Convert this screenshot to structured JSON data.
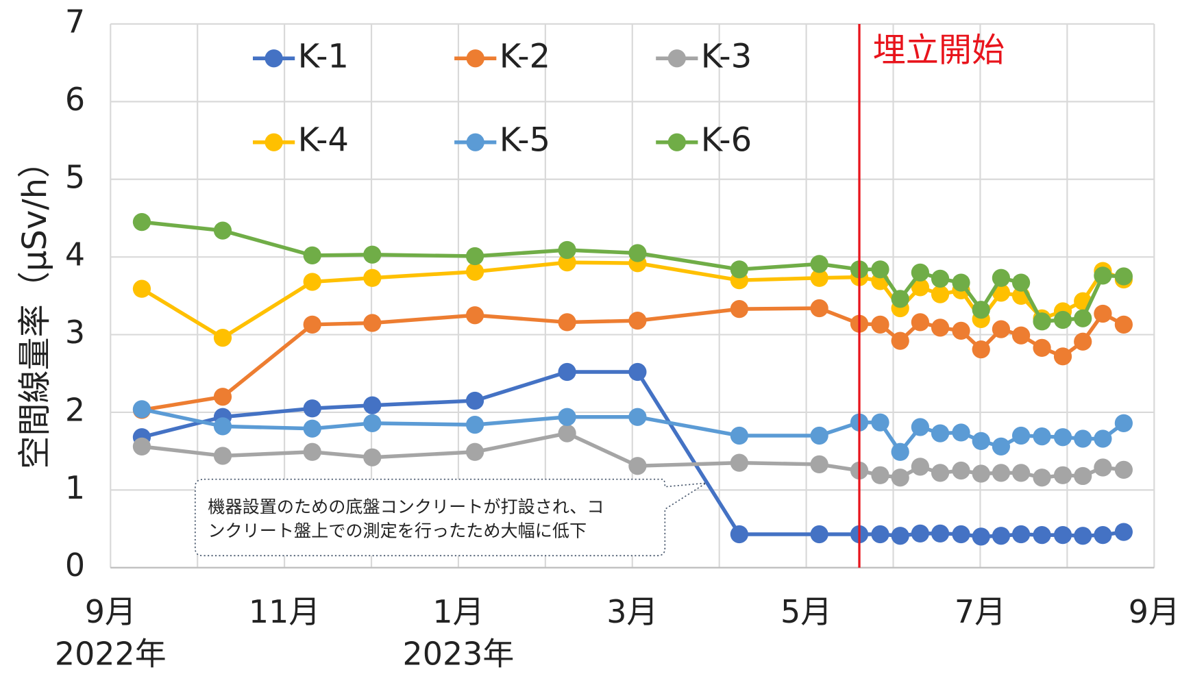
{
  "chart_data": {
    "type": "line",
    "y_label": "空間線量率（μSv/h）",
    "x": [
      0.36,
      1.29,
      2.32,
      3.01,
      4.19,
      5.25,
      6.06,
      7.23,
      8.15,
      8.61,
      8.85,
      9.08,
      9.31,
      9.54,
      9.78,
      10.01,
      10.24,
      10.47,
      10.71,
      10.95,
      11.18,
      11.41,
      11.65
    ],
    "series": [
      {
        "name": "K-1",
        "color": "#4472c4",
        "values": [
          1.68,
          1.94,
          2.05,
          2.09,
          2.15,
          2.52,
          2.52,
          0.43,
          0.43,
          0.43,
          0.43,
          0.41,
          0.44,
          0.44,
          0.43,
          0.4,
          0.41,
          0.43,
          0.42,
          0.42,
          0.41,
          0.42,
          0.46
        ]
      },
      {
        "name": "K-2",
        "color": "#ed7d31",
        "values": [
          2.03,
          2.2,
          3.13,
          3.15,
          3.25,
          3.16,
          3.18,
          3.33,
          3.34,
          3.14,
          3.13,
          2.92,
          3.16,
          3.09,
          3.05,
          2.81,
          3.07,
          2.99,
          2.83,
          2.72,
          2.91,
          3.27,
          3.13
        ]
      },
      {
        "name": "K-3",
        "color": "#a5a5a5",
        "values": [
          1.56,
          1.44,
          1.49,
          1.42,
          1.49,
          1.73,
          1.31,
          1.35,
          1.33,
          1.25,
          1.19,
          1.16,
          1.3,
          1.22,
          1.25,
          1.21,
          1.22,
          1.22,
          1.16,
          1.19,
          1.18,
          1.29,
          1.26
        ]
      },
      {
        "name": "K-4",
        "color": "#ffc000",
        "values": [
          3.59,
          2.96,
          3.68,
          3.73,
          3.81,
          3.93,
          3.92,
          3.7,
          3.73,
          3.74,
          3.69,
          3.34,
          3.61,
          3.52,
          3.57,
          3.2,
          3.54,
          3.5,
          3.21,
          3.3,
          3.43,
          3.82,
          3.71
        ]
      },
      {
        "name": "K-5",
        "color": "#5b9bd5",
        "values": [
          2.04,
          1.82,
          1.79,
          1.86,
          1.84,
          1.94,
          1.94,
          1.7,
          1.7,
          1.87,
          1.87,
          1.49,
          1.81,
          1.73,
          1.74,
          1.63,
          1.56,
          1.7,
          1.69,
          1.68,
          1.66,
          1.66,
          1.86
        ]
      },
      {
        "name": "K-6",
        "color": "#70ad47",
        "values": [
          4.45,
          4.34,
          4.02,
          4.03,
          4.01,
          4.09,
          4.05,
          3.84,
          3.91,
          3.84,
          3.84,
          3.46,
          3.8,
          3.72,
          3.67,
          3.32,
          3.73,
          3.67,
          3.17,
          3.19,
          3.21,
          3.76,
          3.75
        ]
      }
    ],
    "xlim": [
      0,
      12
    ],
    "xticks": [
      {
        "value": 0,
        "label": "9月"
      },
      {
        "value": 2,
        "label": "11月"
      },
      {
        "value": 4,
        "label": "1月"
      },
      {
        "value": 6,
        "label": "3月"
      },
      {
        "value": 8,
        "label": "5月"
      },
      {
        "value": 10,
        "label": "7月"
      },
      {
        "value": 12,
        "label": "9月"
      }
    ],
    "xminor": [
      1,
      3,
      5,
      7,
      9,
      11
    ],
    "x_year_labels": [
      {
        "value": 0,
        "label": "2022年"
      },
      {
        "value": 4,
        "label": "2023年"
      }
    ],
    "ylim": [
      0,
      7
    ],
    "yticks": [
      0,
      1,
      2,
      3,
      4,
      5,
      6,
      7
    ],
    "grid": true,
    "vline": {
      "x": 8.61,
      "label": "埋立開始",
      "color": "#e8141c"
    },
    "annotation": {
      "lines": [
        "機器設置のための底盤コンクリートが打設され、コ",
        "ンクリート盤上での測定を行ったため大幅に低下"
      ]
    }
  }
}
